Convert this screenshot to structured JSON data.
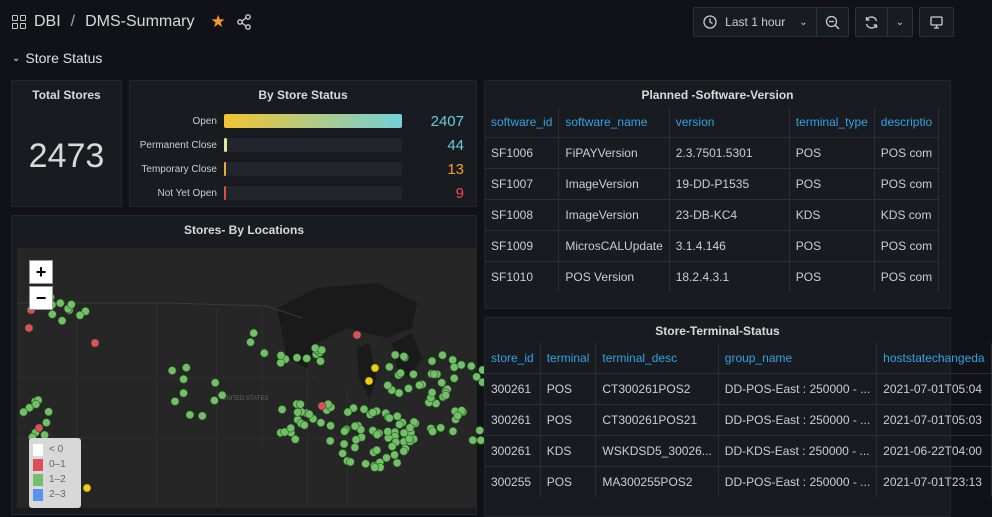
{
  "header": {
    "folder": "DBI",
    "dashboard": "DMS-Summary",
    "time_range": "Last 1 hour"
  },
  "row": {
    "title": "Store Status"
  },
  "total_stores": {
    "title": "Total Stores",
    "value": "2473"
  },
  "by_status": {
    "title": "By Store Status",
    "bars": [
      {
        "label": "Open",
        "value": "2407",
        "fraction": 1.0,
        "color": "#73bf69",
        "val_color": "#6ccadc"
      },
      {
        "label": "Permanent Close",
        "value": "44",
        "fraction": 0.018,
        "color": "#e8e3a0",
        "val_color": "#6ccadc"
      },
      {
        "label": "Temporary Close",
        "value": "13",
        "fraction": 0.006,
        "color": "#f2a93b",
        "val_color": "#fa9f24"
      },
      {
        "label": "Not Yet Open",
        "value": "9",
        "fraction": 0.004,
        "color": "#e24d42",
        "val_color": "#f2495c"
      }
    ]
  },
  "software": {
    "title": "Planned -Software-Version",
    "columns": [
      "software_id",
      "software_name",
      "version",
      "terminal_type",
      "descriptio"
    ],
    "rows": [
      [
        "SF1006",
        "FiPAYVersion",
        "2.3.7501.5301",
        "POS",
        "POS com"
      ],
      [
        "SF1007",
        "ImageVersion",
        "19-DD-P1535",
        "POS",
        "POS com"
      ],
      [
        "SF1008",
        "ImageVersion",
        "23-DB-KC4",
        "KDS",
        "KDS com"
      ],
      [
        "SF1009",
        "MicrosCALUpdate",
        "3.1.4.146",
        "POS",
        "POS com"
      ],
      [
        "SF1010",
        "POS Version",
        "18.2.4.3.1",
        "POS",
        "POS com"
      ]
    ]
  },
  "locations": {
    "title": "Stores- By Locations",
    "zoom_in": "+",
    "zoom_out": "−",
    "map_label": "UNITED STATES",
    "legend": [
      {
        "label": "< 0",
        "color": "#ffffff"
      },
      {
        "label": "0–1",
        "color": "#e24d5c"
      },
      {
        "label": "1–2",
        "color": "#73bf69"
      },
      {
        "label": "2–3",
        "color": "#5794f2"
      }
    ]
  },
  "terminal": {
    "title": "Store-Terminal-Status",
    "columns": [
      "store_id",
      "terminal",
      "terminal_desc",
      "group_name",
      "hoststatechangeda"
    ],
    "rows": [
      [
        "300261",
        "POS",
        "CT300261POS2",
        "DD-POS-East : 250000 - ...",
        "2021-07-01T05:04"
      ],
      [
        "300261",
        "POS",
        "CT300261POS21",
        "DD-POS-East : 250000 - ...",
        "2021-07-01T05:03"
      ],
      [
        "300261",
        "KDS",
        "WSKDSD5_30026...",
        "DD-KDS-East : 250000 - ...",
        "2021-06-22T04:00"
      ],
      [
        "300255",
        "POS",
        "MA300255POS2",
        "DD-POS-East : 250000 - ...",
        "2021-07-01T23:13"
      ]
    ]
  }
}
